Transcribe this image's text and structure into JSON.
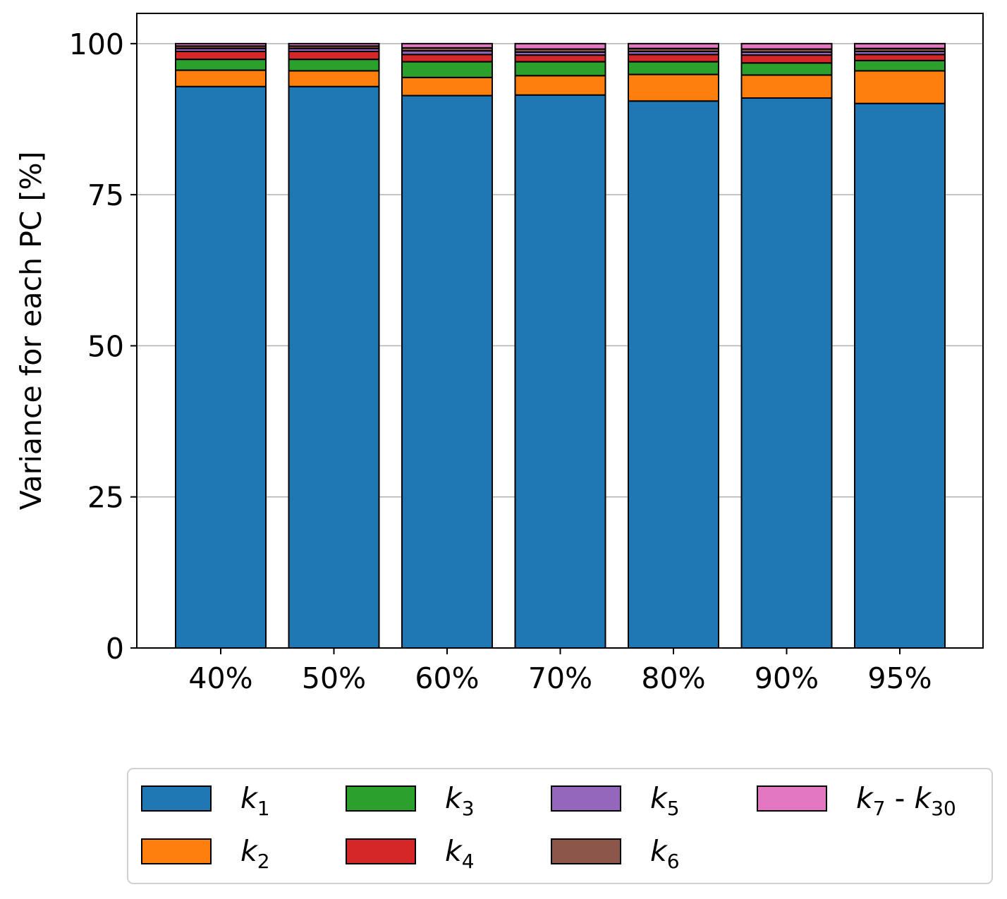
{
  "chart_data": {
    "type": "bar",
    "stacked": true,
    "title": "",
    "xlabel": "",
    "ylabel": "Variance for each PC [%]",
    "ylim": [
      0,
      105
    ],
    "yticks": [
      0,
      25,
      50,
      75,
      100
    ],
    "ytick_labels": [
      "0",
      "25",
      "50",
      "75",
      "100"
    ],
    "grid": "horizontal",
    "legend_position": "below",
    "categories": [
      "40%",
      "50%",
      "60%",
      "70%",
      "80%",
      "90%",
      "95%"
    ],
    "series": [
      {
        "name": "k1",
        "sub": "1",
        "color": "#1f77b4",
        "values": [
          92.9,
          92.9,
          91.4,
          91.5,
          90.5,
          91.0,
          90.1
        ]
      },
      {
        "name": "k2",
        "sub": "2",
        "color": "#ff7f0e",
        "values": [
          2.7,
          2.6,
          3.0,
          3.2,
          4.4,
          3.8,
          5.4
        ]
      },
      {
        "name": "k3",
        "sub": "3",
        "color": "#2ca02c",
        "values": [
          1.8,
          1.9,
          2.6,
          2.3,
          2.1,
          2.0,
          1.7
        ]
      },
      {
        "name": "k4",
        "sub": "4",
        "color": "#d62728",
        "values": [
          1.3,
          1.3,
          1.2,
          1.1,
          1.2,
          1.3,
          1.0
        ]
      },
      {
        "name": "k5",
        "sub": "5",
        "color": "#9467bd",
        "values": [
          0.5,
          0.5,
          0.6,
          0.5,
          0.5,
          0.5,
          0.5
        ]
      },
      {
        "name": "k6",
        "sub": "6",
        "color": "#8c564b",
        "values": [
          0.4,
          0.4,
          0.5,
          0.5,
          0.5,
          0.5,
          0.5
        ]
      },
      {
        "name": "k7 - k30",
        "sub": "7",
        "sub2": "30",
        "color": "#e377c2",
        "values": [
          0.4,
          0.4,
          0.7,
          0.9,
          0.8,
          0.9,
          0.8
        ]
      }
    ]
  }
}
